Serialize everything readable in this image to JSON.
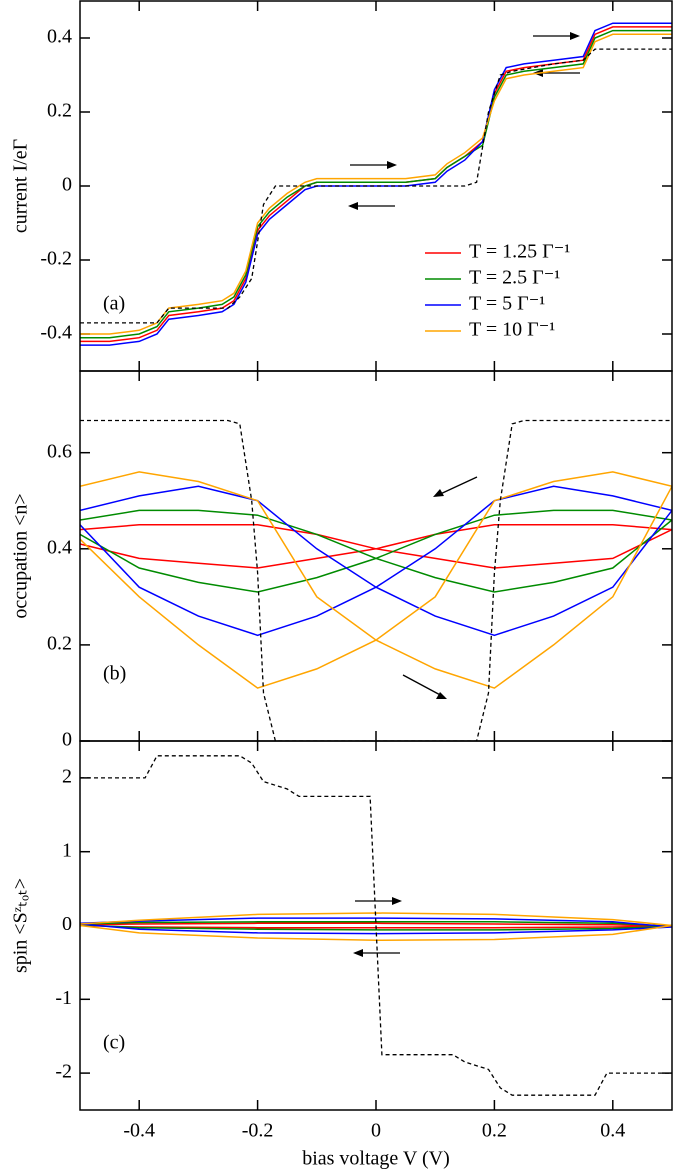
{
  "chart_data": [
    {
      "type": "line",
      "label": "(a)",
      "ylabel": "current  I/eΓ",
      "legend": "lower right",
      "xlim": [
        -0.5,
        0.5
      ],
      "ylim": [
        -0.5,
        0.5
      ],
      "yticks": [
        -0.4,
        -0.2,
        0,
        0.2,
        0.4
      ],
      "x": [
        -0.5,
        -0.45,
        -0.4,
        -0.37,
        -0.35,
        -0.3,
        -0.26,
        -0.24,
        -0.22,
        -0.2,
        -0.18,
        -0.15,
        -0.12,
        -0.1,
        -0.05,
        0,
        0.05,
        0.1,
        0.12,
        0.15,
        0.18,
        0.2,
        0.22,
        0.25,
        0.3,
        0.35,
        0.37,
        0.4,
        0.45,
        0.5
      ],
      "series": [
        {
          "name": "T = 1.25 Γ⁻¹",
          "color": "#ff0000",
          "values": [
            -0.42,
            -0.42,
            -0.41,
            -0.39,
            -0.35,
            -0.34,
            -0.33,
            -0.31,
            -0.25,
            -0.12,
            -0.08,
            -0.04,
            0.0,
            0.01,
            0.01,
            0.01,
            0.01,
            0.02,
            0.05,
            0.08,
            0.12,
            0.25,
            0.31,
            0.32,
            0.33,
            0.34,
            0.41,
            0.43,
            0.43,
            0.43
          ]
        },
        {
          "name": "T = 2.5 Γ⁻¹",
          "color": "#008b00",
          "values": [
            -0.41,
            -0.41,
            -0.4,
            -0.38,
            -0.34,
            -0.33,
            -0.32,
            -0.3,
            -0.24,
            -0.11,
            -0.07,
            -0.03,
            0.0,
            0.01,
            0.01,
            0.01,
            0.01,
            0.02,
            0.05,
            0.08,
            0.11,
            0.24,
            0.3,
            0.31,
            0.32,
            0.33,
            0.4,
            0.42,
            0.42,
            0.42
          ]
        },
        {
          "name": "T = 5 Γ⁻¹",
          "color": "#0000ff",
          "values": [
            -0.43,
            -0.43,
            -0.42,
            -0.4,
            -0.36,
            -0.35,
            -0.34,
            -0.32,
            -0.26,
            -0.13,
            -0.09,
            -0.05,
            -0.01,
            0.0,
            0.0,
            0.0,
            0.0,
            0.01,
            0.04,
            0.07,
            0.12,
            0.26,
            0.32,
            0.33,
            0.34,
            0.35,
            0.42,
            0.44,
            0.44,
            0.44
          ]
        },
        {
          "name": "T = 10 Γ⁻¹",
          "color": "#ffa500",
          "values": [
            -0.4,
            -0.4,
            -0.39,
            -0.37,
            -0.33,
            -0.32,
            -0.31,
            -0.29,
            -0.23,
            -0.1,
            -0.06,
            -0.02,
            0.01,
            0.02,
            0.02,
            0.02,
            0.02,
            0.03,
            0.06,
            0.09,
            0.13,
            0.23,
            0.29,
            0.3,
            0.31,
            0.32,
            0.39,
            0.41,
            0.41,
            0.41
          ]
        },
        {
          "color": "#000000",
          "dash": true,
          "x": [
            -0.5,
            -0.37,
            -0.35,
            -0.25,
            -0.23,
            -0.21,
            -0.19,
            -0.17,
            -0.15,
            0.15,
            0.17,
            0.19,
            0.21,
            0.23,
            0.3,
            0.35,
            0.37,
            0.5
          ],
          "values": [
            -0.37,
            -0.37,
            -0.33,
            -0.33,
            -0.3,
            -0.25,
            -0.05,
            0,
            0,
            0,
            0.01,
            0.2,
            0.3,
            0.31,
            0.33,
            0.34,
            0.37,
            0.37
          ]
        }
      ]
    },
    {
      "type": "line",
      "label": "(b)",
      "ylabel": "occupation  <n>",
      "xlim": [
        -0.5,
        0.5
      ],
      "ylim": [
        0,
        0.77
      ],
      "yticks": [
        0,
        0.2,
        0.4,
        0.6
      ],
      "x": [
        -0.5,
        -0.4,
        -0.3,
        -0.2,
        -0.1,
        0,
        0.1,
        0.2,
        0.3,
        0.4,
        0.5,
        0.4,
        0.3,
        0.2,
        0.1,
        0,
        -0.1,
        -0.2,
        -0.3,
        -0.4,
        -0.5
      ],
      "series": [
        {
          "color": "#ff0000",
          "values": [
            0.41,
            0.38,
            0.37,
            0.36,
            0.38,
            0.4,
            0.43,
            0.45,
            0.45,
            0.45,
            0.44,
            0.38,
            0.37,
            0.36,
            0.38,
            0.4,
            0.43,
            0.45,
            0.45,
            0.45,
            0.44
          ]
        },
        {
          "color": "#008b00",
          "values": [
            0.43,
            0.36,
            0.33,
            0.31,
            0.34,
            0.38,
            0.43,
            0.47,
            0.48,
            0.48,
            0.46,
            0.36,
            0.33,
            0.31,
            0.34,
            0.38,
            0.43,
            0.47,
            0.48,
            0.48,
            0.46
          ]
        },
        {
          "color": "#0000ff",
          "values": [
            0.45,
            0.32,
            0.26,
            0.22,
            0.26,
            0.32,
            0.4,
            0.5,
            0.53,
            0.51,
            0.48,
            0.32,
            0.26,
            0.22,
            0.26,
            0.32,
            0.4,
            0.5,
            0.53,
            0.51,
            0.48
          ]
        },
        {
          "color": "#ffa500",
          "values": [
            0.42,
            0.3,
            0.2,
            0.11,
            0.15,
            0.21,
            0.3,
            0.5,
            0.54,
            0.56,
            0.53,
            0.3,
            0.2,
            0.11,
            0.15,
            0.21,
            0.3,
            0.5,
            0.54,
            0.56,
            0.53
          ]
        },
        {
          "color": "#000000",
          "dash": true,
          "x": [
            -0.5,
            -0.25,
            -0.23,
            -0.21,
            -0.2,
            -0.19,
            -0.17,
            0.17,
            0.19,
            0.2,
            0.21,
            0.23,
            0.25,
            0.5
          ],
          "values": [
            0.667,
            0.667,
            0.66,
            0.5,
            0.35,
            0.1,
            0,
            0,
            0.1,
            0.35,
            0.5,
            0.66,
            0.667,
            0.667
          ]
        }
      ]
    },
    {
      "type": "line",
      "label": "(c)",
      "ylabel": "spin  <Sᶻₜₒₜ>",
      "xlabel": "bias voltage  V (V)",
      "xlim": [
        -0.5,
        0.5
      ],
      "ylim": [
        -2.5,
        2.5
      ],
      "yticks": [
        -2,
        -1,
        0,
        1,
        2
      ],
      "xticks": [
        -0.4,
        -0.2,
        0,
        0.2,
        0.4
      ],
      "x": [
        -0.5,
        -0.4,
        -0.2,
        0,
        0.2,
        0.4,
        0.5,
        0.4,
        0.2,
        0,
        -0.2,
        -0.4,
        -0.5
      ],
      "series": [
        {
          "color": "#ff0000",
          "values": [
            0.01,
            0.02,
            0.03,
            0.03,
            0.02,
            0.01,
            -0.01,
            -0.02,
            -0.03,
            -0.03,
            -0.03,
            -0.02,
            0.0
          ]
        },
        {
          "color": "#008b00",
          "values": [
            0.02,
            0.04,
            0.05,
            0.05,
            0.05,
            0.03,
            -0.01,
            -0.04,
            -0.06,
            -0.06,
            -0.05,
            -0.03,
            0.01
          ]
        },
        {
          "color": "#0000ff",
          "values": [
            0.03,
            0.06,
            0.1,
            0.1,
            0.09,
            0.05,
            -0.02,
            -0.06,
            -0.1,
            -0.11,
            -0.1,
            -0.05,
            0.02
          ]
        },
        {
          "color": "#ffa500",
          "values": [
            0.02,
            0.07,
            0.15,
            0.17,
            0.15,
            0.08,
            0.0,
            -0.12,
            -0.19,
            -0.2,
            -0.17,
            -0.1,
            0.0
          ]
        },
        {
          "color": "#000000",
          "dash": true,
          "x": [
            -0.5,
            -0.39,
            -0.37,
            -0.35,
            -0.23,
            -0.21,
            -0.19,
            -0.17,
            -0.15,
            -0.13,
            -0.01,
            0,
            0.01,
            0.13,
            0.15,
            0.17,
            0.19,
            0.21,
            0.23,
            0.35,
            0.37,
            0.39,
            0.5
          ],
          "values": [
            2,
            2,
            2.3,
            2.3,
            2.3,
            2.2,
            1.95,
            1.9,
            1.85,
            1.75,
            1.75,
            0,
            -1.75,
            -1.75,
            -1.85,
            -1.9,
            -1.95,
            -2.2,
            -2.3,
            -2.3,
            -2.3,
            -2,
            -2
          ]
        }
      ]
    }
  ]
}
